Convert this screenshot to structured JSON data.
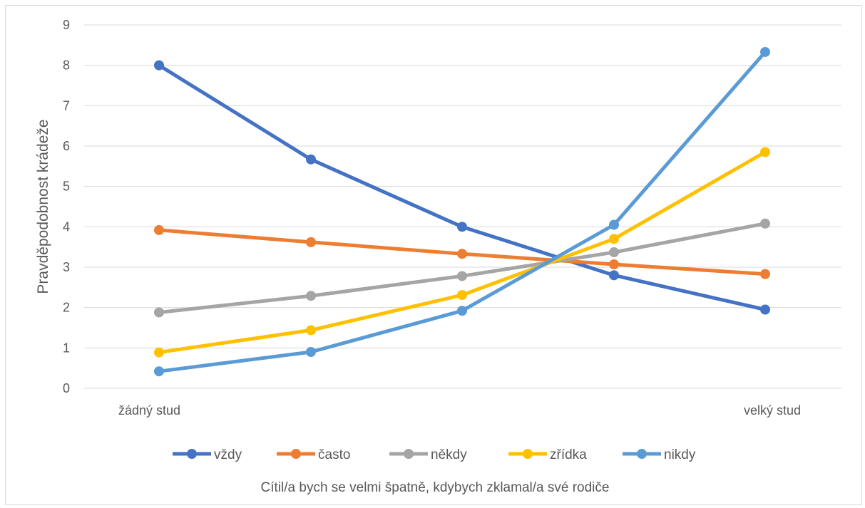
{
  "chart_data": {
    "type": "line",
    "title": "",
    "xlabel": "Cítil/a bych se velmi špatně, kdybych zklamal/a své rodiče",
    "ylabel": "Pravděpodobnost krádeže",
    "x_tick_labels": [
      "žádný stud",
      "",
      "",
      "",
      "velký stud"
    ],
    "x": [
      1,
      2,
      3,
      4,
      5
    ],
    "ylim": [
      0,
      9
    ],
    "yticks": [
      0,
      1,
      2,
      3,
      4,
      5,
      6,
      7,
      8,
      9
    ],
    "grid": true,
    "legend_position": "bottom",
    "series": [
      {
        "name": "vždy",
        "color": "#4472C4",
        "values": [
          8.0,
          5.67,
          4.0,
          2.8,
          1.95
        ]
      },
      {
        "name": "často",
        "color": "#ED7D31",
        "values": [
          3.92,
          3.62,
          3.33,
          3.07,
          2.83
        ]
      },
      {
        "name": "někdy",
        "color": "#A5A5A5",
        "values": [
          1.88,
          2.29,
          2.78,
          3.37,
          4.08
        ]
      },
      {
        "name": "zřídka",
        "color": "#FFC000",
        "values": [
          0.89,
          1.44,
          2.31,
          3.7,
          5.85
        ]
      },
      {
        "name": "nikdy",
        "color": "#5B9BD5",
        "values": [
          0.42,
          0.9,
          1.92,
          4.05,
          8.33
        ]
      }
    ]
  }
}
